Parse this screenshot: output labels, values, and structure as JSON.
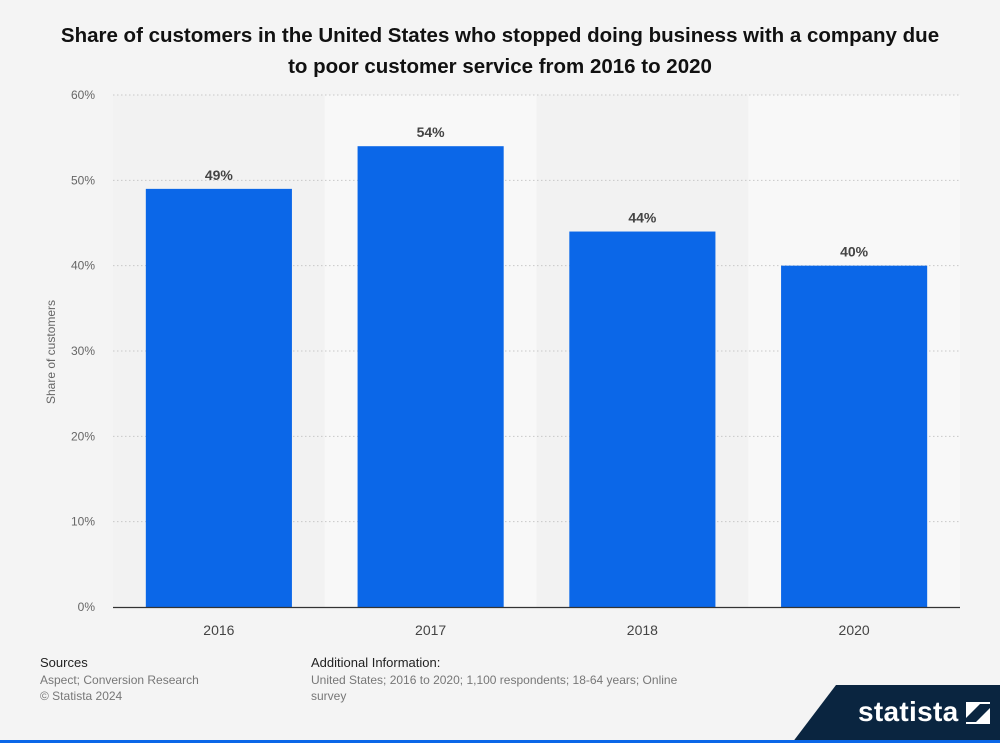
{
  "chart_data": {
    "type": "bar",
    "title": "Share of customers in the United States who stopped doing business with a company due to poor customer service from 2016 to 2020",
    "categories": [
      "2016",
      "2017",
      "2018",
      "2020"
    ],
    "values": [
      49,
      54,
      44,
      40
    ],
    "value_labels": [
      "49%",
      "54%",
      "44%",
      "40%"
    ],
    "ylabel": "Share of customers",
    "xlabel": "",
    "ylim": [
      0,
      60
    ],
    "yticks": [
      0,
      10,
      20,
      30,
      40,
      50,
      60
    ],
    "ytick_labels": [
      "0%",
      "10%",
      "20%",
      "30%",
      "40%",
      "50%",
      "60%"
    ],
    "grid": true,
    "bar_color": "#0b67e8"
  },
  "footer": {
    "sources_title": "Sources",
    "sources_lines": [
      "Aspect; Conversion Research",
      "© Statista 2024"
    ],
    "info_title": "Additional Information:",
    "info_text": "United States; 2016 to 2020; 1,100 respondents; 18-64 years; Online survey"
  },
  "brand": {
    "name": "statista",
    "color": "#0a2540"
  }
}
